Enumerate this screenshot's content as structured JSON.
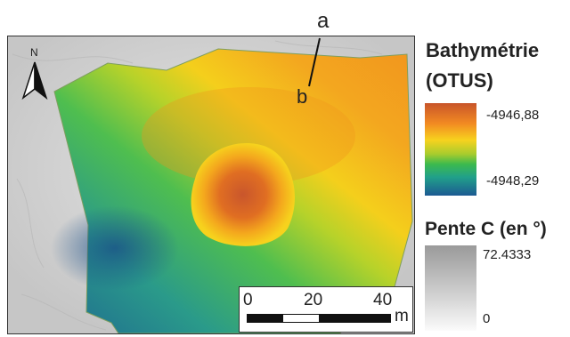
{
  "profile_labels": {
    "a": "a",
    "b": "b"
  },
  "legend": {
    "bathymetry": {
      "title_line1": "Bathymétrie",
      "title_line2": "(OTUS)",
      "max": "-4946,88",
      "min": "-4948,29",
      "colors": [
        "#c8552a",
        "#f28a22",
        "#f7d21e",
        "#a9cc2d",
        "#3cba4d",
        "#21a08a",
        "#1c5a92"
      ]
    },
    "slope": {
      "title": "Pente C (en °)",
      "max": "72.4333",
      "min": "0",
      "colors": [
        "#9a9a9a",
        "#fbfbfb"
      ]
    }
  },
  "north_arrow": {
    "letter": "N",
    "icon": "north-arrow-icon"
  },
  "scale_bar": {
    "ticks": [
      "0",
      "20",
      "40"
    ],
    "unit": "m"
  }
}
